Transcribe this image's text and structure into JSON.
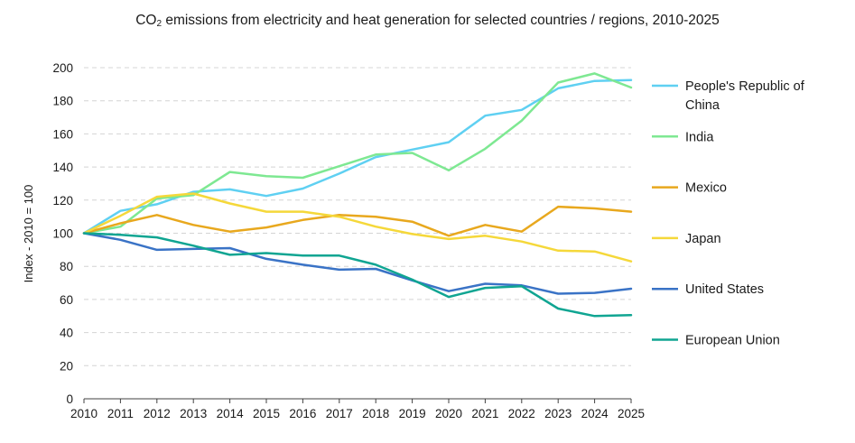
{
  "chart_data": {
    "type": "line",
    "title_prefix": "CO",
    "title_subscript": "2",
    "title_suffix": " emissions from electricity and heat generation for selected countries / regions, 2010-2025",
    "xlabel": "",
    "ylabel": "Index - 2010 = 100",
    "x": [
      "2010",
      "2011",
      "2012",
      "2013",
      "2014",
      "2015",
      "2016",
      "2017",
      "2018",
      "2019",
      "2020",
      "2021",
      "2022",
      "2023",
      "2024",
      "2025"
    ],
    "ylim": [
      0,
      200
    ],
    "yticks": [
      "0",
      "20",
      "40",
      "60",
      "80",
      "100",
      "120",
      "140",
      "160",
      "180",
      "200"
    ],
    "grid": "horizontal dashed",
    "legend_position": "right",
    "series": [
      {
        "name": "People's Republic of China",
        "legend_lines": [
          "People's Republic of",
          "China"
        ],
        "color": "#5fd0f2",
        "values": [
          100,
          113.5,
          117.5,
          125,
          126.5,
          122.5,
          127,
          136,
          146,
          150.5,
          155,
          171,
          174.5,
          187.5,
          192,
          192.5
        ]
      },
      {
        "name": "India",
        "legend_lines": [
          "India"
        ],
        "color": "#7ee892",
        "values": [
          100,
          104,
          121,
          123,
          137,
          134.5,
          133.5,
          140.5,
          147.5,
          148.5,
          138,
          151,
          168,
          191,
          196.5,
          188
        ]
      },
      {
        "name": "Mexico",
        "legend_lines": [
          "Mexico"
        ],
        "color": "#e8a81e",
        "values": [
          100,
          106,
          111,
          105,
          101,
          103.5,
          108,
          111,
          110,
          107,
          98.5,
          105,
          101,
          116,
          115,
          113
        ]
      },
      {
        "name": "Japan",
        "legend_lines": [
          "Japan"
        ],
        "color": "#f5d83a",
        "values": [
          100,
          110.5,
          122,
          124,
          118,
          113,
          113,
          110,
          104,
          99.5,
          96.5,
          98.5,
          95,
          89.5,
          89,
          83
        ]
      },
      {
        "name": "United States",
        "legend_lines": [
          "United States"
        ],
        "color": "#3a73c6",
        "values": [
          100,
          96,
          90,
          90.5,
          91,
          84.5,
          81,
          78,
          78.5,
          71.5,
          65,
          69.5,
          68.5,
          63.5,
          64,
          66.5
        ]
      },
      {
        "name": "European Union",
        "legend_lines": [
          "European Union"
        ],
        "color": "#10a592",
        "values": [
          100,
          99,
          97.5,
          92.5,
          87,
          88,
          86.5,
          86.5,
          81,
          72,
          61.5,
          67,
          68,
          54.5,
          50,
          50.5
        ]
      }
    ]
  }
}
